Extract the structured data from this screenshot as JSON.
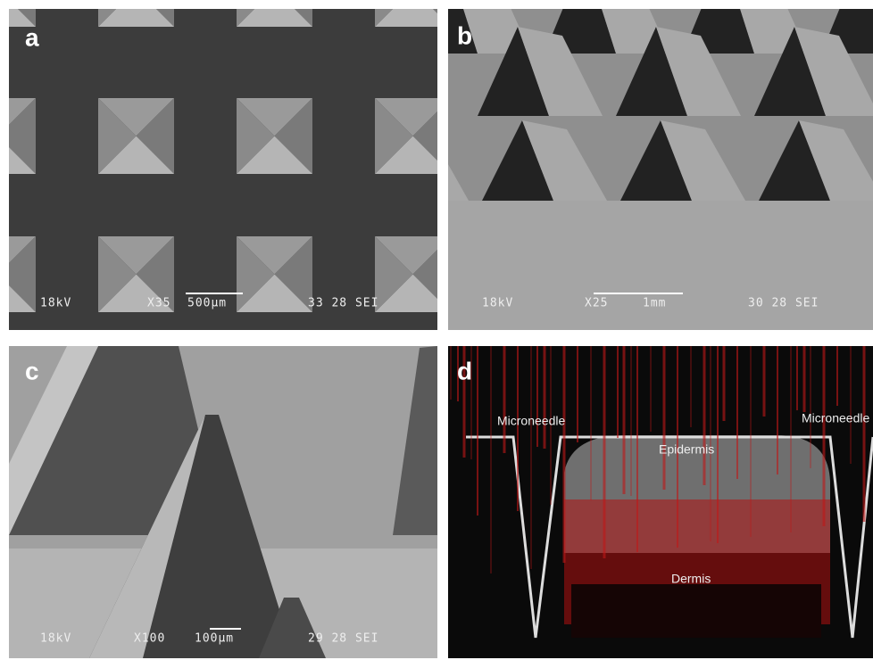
{
  "panels": [
    {
      "label": "a",
      "info": {
        "voltage": "18kV",
        "magnification": "X35",
        "scale": "500µm",
        "code": "33 28 SEI"
      }
    },
    {
      "label": "b",
      "info": {
        "voltage": "18kV",
        "magnification": "X25",
        "scale": "1mm",
        "code": "30 28 SEI"
      }
    },
    {
      "label": "c",
      "info": {
        "voltage": "18kV",
        "magnification": "X100",
        "scale": "100µm",
        "code": "29 28 SEI"
      }
    },
    {
      "label": "d",
      "annotations": [
        "Microneedle",
        "Microneedle",
        "Epidermis",
        "Dermis"
      ]
    }
  ]
}
